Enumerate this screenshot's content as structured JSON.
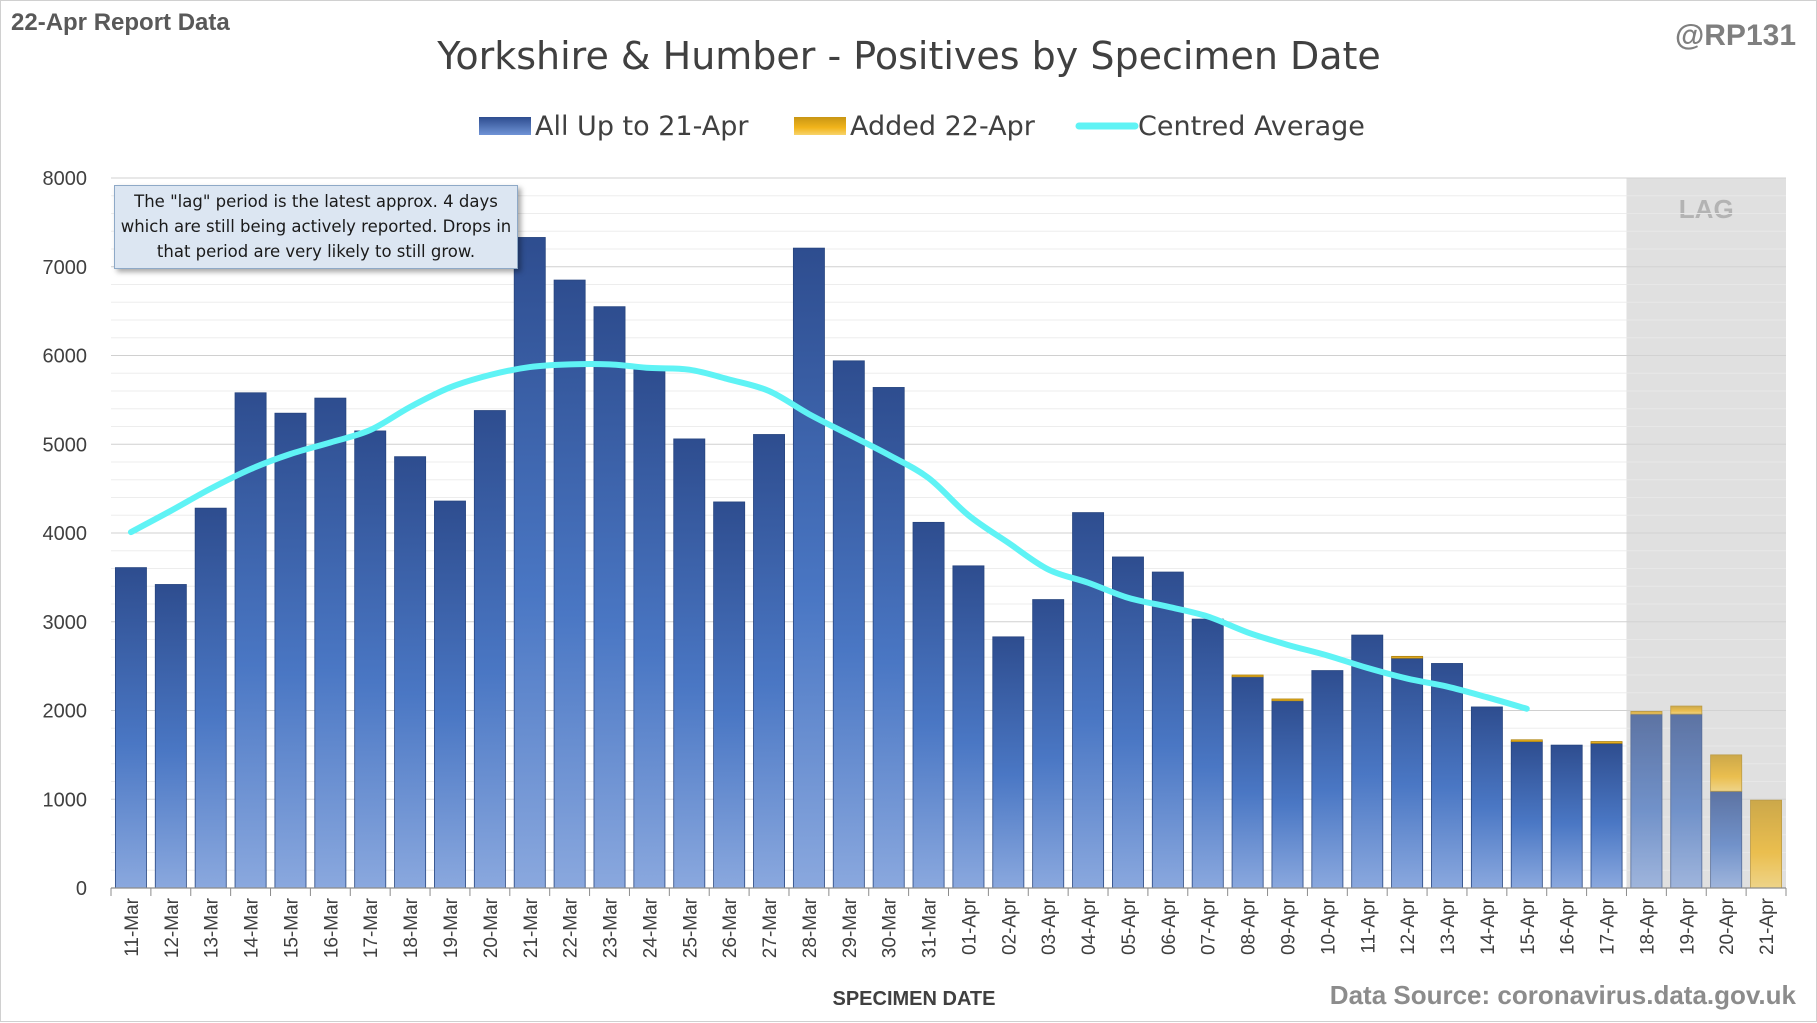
{
  "header": {
    "report_label": "22-Apr Report Data",
    "handle": "@RP131"
  },
  "footer": {
    "source": "Data Source: coronavirus.data.gov.uk"
  },
  "callout": {
    "text": "The \"lag\" period is the latest approx. 4 days which are still being actively reported.  Drops in that period are very likely to still grow."
  },
  "colors": {
    "bar_base": "#2e4d8f",
    "bar_light": "#8aa8de",
    "added": "#f2b51b",
    "average": "#5ff3f5",
    "lag_band": "#e4e4e4"
  },
  "chart_data": {
    "type": "bar",
    "stacked": true,
    "title": "Yorkshire & Humber - Positives by Specimen Date",
    "xlabel": "SPECIMEN DATE",
    "ylabel": "",
    "ylim": [
      0,
      8000
    ],
    "yticks": [
      0,
      1000,
      2000,
      3000,
      4000,
      5000,
      6000,
      7000,
      8000
    ],
    "grid": true,
    "legend_position": "top",
    "lag_label": "LAG",
    "lag_categories": [
      "18-Apr",
      "19-Apr",
      "20-Apr",
      "21-Apr"
    ],
    "categories": [
      "11-Mar",
      "12-Mar",
      "13-Mar",
      "14-Mar",
      "15-Mar",
      "16-Mar",
      "17-Mar",
      "18-Mar",
      "19-Mar",
      "20-Mar",
      "21-Mar",
      "22-Mar",
      "23-Mar",
      "24-Mar",
      "25-Mar",
      "26-Mar",
      "27-Mar",
      "28-Mar",
      "29-Mar",
      "30-Mar",
      "31-Mar",
      "01-Apr",
      "02-Apr",
      "03-Apr",
      "04-Apr",
      "05-Apr",
      "06-Apr",
      "07-Apr",
      "08-Apr",
      "09-Apr",
      "10-Apr",
      "11-Apr",
      "12-Apr",
      "13-Apr",
      "14-Apr",
      "15-Apr",
      "16-Apr",
      "17-Apr",
      "18-Apr",
      "19-Apr",
      "20-Apr",
      "21-Apr"
    ],
    "series": [
      {
        "name": "All Up to 21-Apr",
        "kind": "bar",
        "values": [
          3610,
          3420,
          4280,
          5580,
          5350,
          5520,
          5150,
          4860,
          4360,
          5380,
          7330,
          6850,
          6550,
          5840,
          5060,
          4350,
          5110,
          7210,
          5940,
          5640,
          4120,
          3630,
          2830,
          3250,
          4230,
          3730,
          3560,
          3030,
          2380,
          2110,
          2450,
          2850,
          2590,
          2530,
          2040,
          1650,
          1610,
          1630,
          1960,
          1960,
          1090,
          0
        ]
      },
      {
        "name": "Added 22-Apr",
        "kind": "bar",
        "values": [
          0,
          0,
          0,
          0,
          0,
          0,
          0,
          0,
          0,
          0,
          0,
          0,
          0,
          0,
          0,
          0,
          0,
          0,
          0,
          0,
          0,
          0,
          0,
          0,
          0,
          0,
          0,
          0,
          20,
          20,
          0,
          0,
          20,
          0,
          0,
          20,
          0,
          20,
          30,
          90,
          410,
          990
        ]
      },
      {
        "name": "Centred Average",
        "kind": "line",
        "values": [
          4010,
          4250,
          4500,
          4720,
          4890,
          5020,
          5160,
          5420,
          5640,
          5780,
          5870,
          5900,
          5900,
          5860,
          5840,
          5730,
          5600,
          5340,
          5110,
          4880,
          4620,
          4200,
          3890,
          3590,
          3440,
          3270,
          3170,
          3060,
          2880,
          2740,
          2620,
          2480,
          2360,
          2270,
          2150,
          2020,
          null,
          null,
          null,
          null,
          null,
          null
        ]
      }
    ]
  }
}
